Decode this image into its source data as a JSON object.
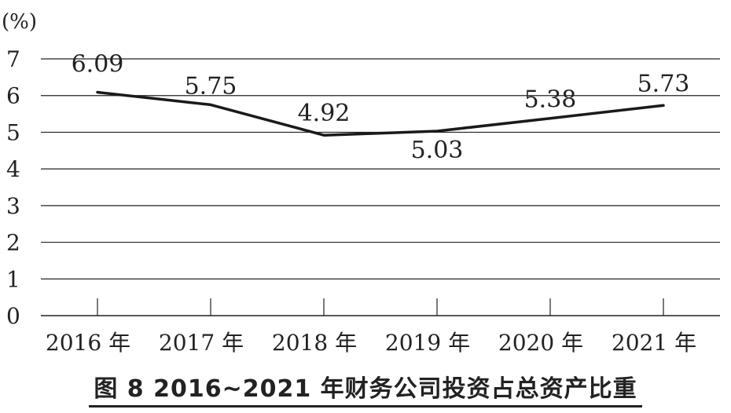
{
  "caption": "图 8 2016~2021 年财务公司投资占总资产比重",
  "chart_data": {
    "type": "line",
    "title": "图 8 2016~2021 年财务公司投资占总资产比重",
    "ylabel": "(%)",
    "xlabel": "",
    "categories": [
      "2016 年",
      "2017 年",
      "2018 年",
      "2019 年",
      "2020 年",
      "2021 年"
    ],
    "series": [
      {
        "values": [
          6.09,
          5.75,
          4.92,
          5.03,
          5.38,
          5.73
        ],
        "data_labels": [
          "6.09",
          "5.75",
          "4.92",
          "5.03",
          "5.38",
          "5.73"
        ]
      }
    ],
    "ylim": [
      0,
      7
    ],
    "yticks": [
      0,
      1,
      2,
      3,
      4,
      5,
      6,
      7
    ],
    "grid": true,
    "line_color": "#1a1a1a",
    "grid_color": "#222222"
  }
}
